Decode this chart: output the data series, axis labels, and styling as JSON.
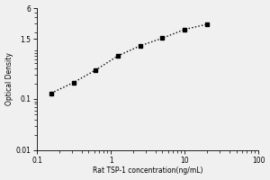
{
  "x": [
    0.156,
    0.313,
    0.625,
    1.25,
    2.5,
    5.0,
    10.0,
    20.0
  ],
  "y": [
    0.13,
    0.21,
    0.37,
    0.7,
    1.1,
    1.55,
    2.3,
    2.9
  ],
  "xlabel": "Rat TSP-1 concentration(ng/mL)",
  "ylabel": "Optical Density",
  "xlim": [
    0.1,
    100
  ],
  "ylim": [
    0.01,
    6
  ],
  "xticks": [
    0.1,
    1,
    10,
    100
  ],
  "xtick_labels": [
    "0.1",
    "1",
    "10",
    "100"
  ],
  "yticks": [
    0.01,
    0.1,
    1.5,
    6
  ],
  "ytick_labels": [
    "0.01",
    "0.1",
    "1.5",
    "6"
  ],
  "marker": "s",
  "marker_color": "black",
  "marker_size": 3,
  "line_style": ":",
  "line_color": "black",
  "line_width": 1.0,
  "bg_color": "#f0f0f0",
  "label_fontsize": 5.5,
  "tick_fontsize": 5.5
}
